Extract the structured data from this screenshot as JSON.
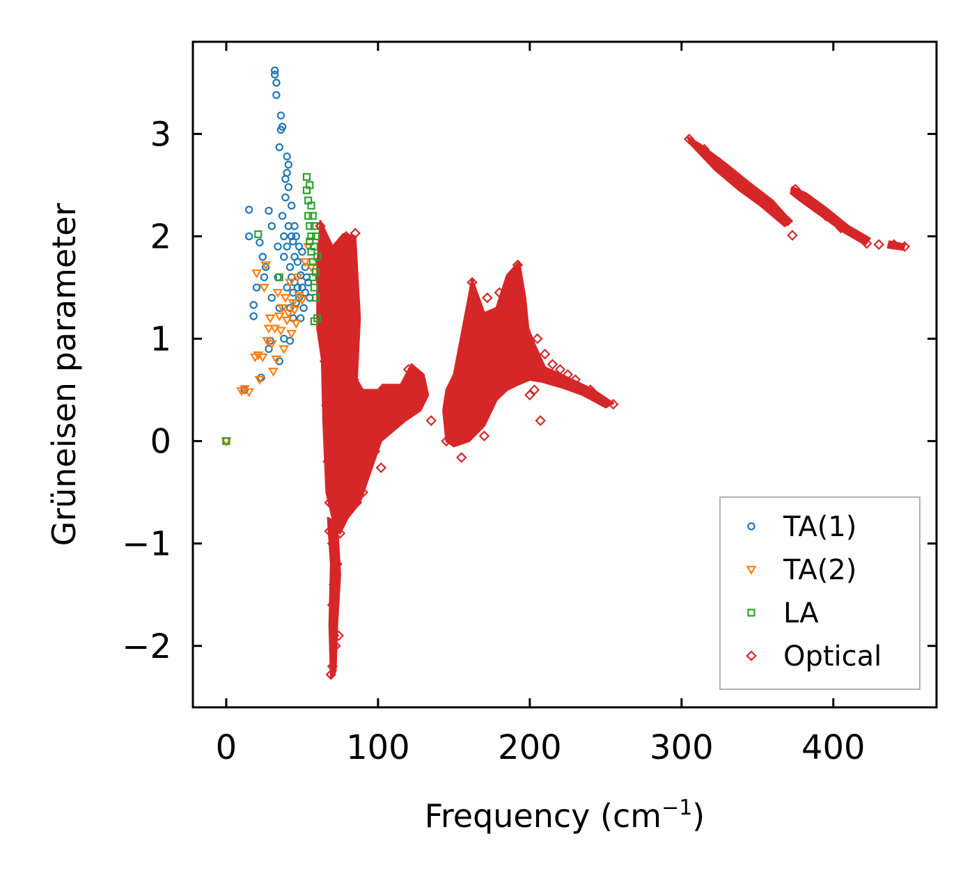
{
  "chart_data": {
    "type": "scatter",
    "xlabel": "Frequency (cm",
    "xlabel_sup": "−1",
    "xlabel_end": ")",
    "ylabel": "Grüneisen parameter",
    "xlim": [
      -22,
      468
    ],
    "ylim": [
      -2.6,
      3.9
    ],
    "x_ticks": [
      0,
      100,
      200,
      300,
      400
    ],
    "x_tick_labels": [
      "0",
      "100",
      "200",
      "300",
      "400"
    ],
    "y_ticks": [
      -2,
      -1,
      0,
      1,
      2,
      3
    ],
    "y_tick_labels": [
      "−2",
      "−1",
      "0",
      "1",
      "2",
      "3"
    ],
    "legend_position": "bottom-right",
    "series": [
      {
        "name": "TA(1)",
        "marker": "circle",
        "color": "#1f77b4",
        "points": [
          [
            0,
            0
          ],
          [
            12,
            0.5
          ],
          [
            15,
            2.0
          ],
          [
            15,
            2.26
          ],
          [
            18,
            1.22
          ],
          [
            18,
            1.33
          ],
          [
            20,
            1.5
          ],
          [
            22,
            1.94
          ],
          [
            23,
            0.62
          ],
          [
            24,
            1.8
          ],
          [
            25,
            1.6
          ],
          [
            26,
            1.7
          ],
          [
            28,
            2.25
          ],
          [
            28,
            0.9
          ],
          [
            29,
            0.98
          ],
          [
            30,
            2.1
          ],
          [
            30,
            1.4
          ],
          [
            32,
            3.62
          ],
          [
            32,
            3.58
          ],
          [
            33,
            3.5
          ],
          [
            33,
            3.38
          ],
          [
            34,
            1.9
          ],
          [
            34,
            1.6
          ],
          [
            35,
            1.3
          ],
          [
            35,
            0.78
          ],
          [
            35,
            2.87
          ],
          [
            36,
            3.04
          ],
          [
            36,
            3.18
          ],
          [
            37,
            3.07
          ],
          [
            37,
            2.2
          ],
          [
            38,
            2.0
          ],
          [
            38,
            1.8
          ],
          [
            38,
            1.0
          ],
          [
            39,
            2.56
          ],
          [
            39,
            2.38
          ],
          [
            40,
            2.78
          ],
          [
            40,
            2.62
          ],
          [
            40,
            1.9
          ],
          [
            40,
            1.5
          ],
          [
            41,
            2.7
          ],
          [
            41,
            2.48
          ],
          [
            41,
            2.1
          ],
          [
            42,
            0.98
          ],
          [
            42,
            1.7
          ],
          [
            42,
            1.3
          ],
          [
            43,
            2.3
          ],
          [
            43,
            2.0
          ],
          [
            43,
            1.6
          ],
          [
            44,
            1.95
          ],
          [
            44,
            1.45
          ],
          [
            44,
            1.2
          ],
          [
            45,
            2.1
          ],
          [
            45,
            1.8
          ],
          [
            45,
            1.55
          ],
          [
            46,
            2.0
          ],
          [
            46,
            1.35
          ],
          [
            47,
            1.75
          ],
          [
            47,
            1.5
          ],
          [
            48,
            1.9
          ],
          [
            48,
            1.4
          ],
          [
            49,
            1.62
          ],
          [
            49,
            1.2
          ],
          [
            50,
            1.85
          ],
          [
            50,
            1.5
          ],
          [
            51,
            1.3
          ],
          [
            52,
            1.7
          ],
          [
            52,
            1.45
          ],
          [
            53,
            1.6
          ],
          [
            54,
            1.55
          ],
          [
            55,
            1.4
          ]
        ]
      },
      {
        "name": "TA(2)",
        "marker": "triangle-down",
        "color": "#ff7f0e",
        "points": [
          [
            0,
            0
          ],
          [
            10,
            0.49
          ],
          [
            12,
            0.51
          ],
          [
            15,
            0.48
          ],
          [
            19,
            0.82
          ],
          [
            20,
            1.64
          ],
          [
            21,
            0.84
          ],
          [
            22,
            0.6
          ],
          [
            24,
            0.82
          ],
          [
            25,
            1.5
          ],
          [
            26,
            1.72
          ],
          [
            27,
            0.98
          ],
          [
            28,
            1.1
          ],
          [
            29,
            1.2
          ],
          [
            30,
            0.95
          ],
          [
            31,
            0.68
          ],
          [
            32,
            1.1
          ],
          [
            33,
            0.8
          ],
          [
            34,
            1.45
          ],
          [
            35,
            1.22
          ],
          [
            36,
            1.08
          ],
          [
            37,
            1.3
          ],
          [
            38,
            0.9
          ],
          [
            39,
            1.4
          ],
          [
            40,
            1.18
          ],
          [
            41,
            1.25
          ],
          [
            42,
            1.55
          ],
          [
            43,
            1.05
          ],
          [
            44,
            1.35
          ],
          [
            45,
            1.28
          ],
          [
            46,
            1.15
          ],
          [
            47,
            1.6
          ],
          [
            48,
            1.42
          ],
          [
            50,
            1.38
          ],
          [
            52,
            1.75
          ],
          [
            54,
            1.9
          ],
          [
            56,
            1.7
          ]
        ]
      },
      {
        "name": "LA",
        "marker": "square",
        "color": "#2ca02c",
        "points": [
          [
            0,
            0
          ],
          [
            21,
            2.02
          ],
          [
            35,
            1.6
          ],
          [
            53,
            2.58
          ],
          [
            53,
            2.45
          ],
          [
            54,
            2.35
          ],
          [
            54,
            2.2
          ],
          [
            55,
            2.5
          ],
          [
            55,
            2.1
          ],
          [
            55,
            1.95
          ],
          [
            56,
            2.3
          ],
          [
            56,
            2.0
          ],
          [
            56,
            1.85
          ],
          [
            57,
            2.2
          ],
          [
            57,
            1.75
          ],
          [
            57,
            1.6
          ],
          [
            58,
            2.1
          ],
          [
            58,
            1.9
          ],
          [
            58,
            1.5
          ],
          [
            59,
            2.0
          ],
          [
            59,
            1.4
          ],
          [
            60,
            1.8
          ],
          [
            60,
            1.2
          ],
          [
            58,
            1.17
          ],
          [
            59,
            1.65
          ]
        ]
      },
      {
        "name": "Optical",
        "marker": "diamond",
        "color": "#d62728",
        "points": [
          [
            62,
            2.1
          ],
          [
            64,
            1.5
          ],
          [
            65,
            0.78
          ],
          [
            66,
            0.35
          ],
          [
            67,
            -0.2
          ],
          [
            68,
            -0.6
          ],
          [
            68,
            -0.88
          ],
          [
            69,
            -2.28
          ],
          [
            70,
            -2.2
          ],
          [
            70,
            -1.6
          ],
          [
            70,
            -1.0
          ],
          [
            71,
            -1.9
          ],
          [
            71,
            -1.4
          ],
          [
            72,
            -2.0
          ],
          [
            72,
            -0.8
          ],
          [
            73,
            -1.2
          ],
          [
            74,
            -1.9
          ],
          [
            74,
            -0.4
          ],
          [
            75,
            -0.9
          ],
          [
            76,
            0.0
          ],
          [
            76,
            1.9
          ],
          [
            78,
            1.6
          ],
          [
            79,
            2.0
          ],
          [
            80,
            1.2
          ],
          [
            80,
            -0.7
          ],
          [
            82,
            0.9
          ],
          [
            84,
            0.6
          ],
          [
            85,
            2.03
          ],
          [
            86,
            -0.6
          ],
          [
            88,
            0.3
          ],
          [
            90,
            -0.5
          ],
          [
            92,
            0.0
          ],
          [
            95,
            0.4
          ],
          [
            98,
            -0.1
          ],
          [
            100,
            0.45
          ],
          [
            102,
            -0.26
          ],
          [
            105,
            0.1
          ],
          [
            108,
            0.5
          ],
          [
            110,
            0.2
          ],
          [
            115,
            0.45
          ],
          [
            120,
            0.7
          ],
          [
            125,
            0.65
          ],
          [
            130,
            0.45
          ],
          [
            135,
            0.2
          ],
          [
            145,
            0.0
          ],
          [
            150,
            0.4
          ],
          [
            155,
            -0.16
          ],
          [
            158,
            0.8
          ],
          [
            160,
            1.0
          ],
          [
            162,
            1.55
          ],
          [
            165,
            0.7
          ],
          [
            167,
            0.4
          ],
          [
            170,
            0.05
          ],
          [
            172,
            1.4
          ],
          [
            175,
            1.1
          ],
          [
            178,
            0.85
          ],
          [
            180,
            1.45
          ],
          [
            182,
            0.5
          ],
          [
            185,
            1.2
          ],
          [
            188,
            0.65
          ],
          [
            190,
            1.6
          ],
          [
            192,
            1.72
          ],
          [
            195,
            1.25
          ],
          [
            198,
            0.8
          ],
          [
            200,
            0.45
          ],
          [
            203,
            0.5
          ],
          [
            205,
            1.0
          ],
          [
            207,
            0.2
          ],
          [
            210,
            0.85
          ],
          [
            215,
            0.75
          ],
          [
            220,
            0.7
          ],
          [
            225,
            0.65
          ],
          [
            230,
            0.6
          ],
          [
            240,
            0.5
          ],
          [
            250,
            0.38
          ],
          [
            255,
            0.36
          ],
          [
            305,
            2.95
          ],
          [
            315,
            2.85
          ],
          [
            325,
            2.72
          ],
          [
            335,
            2.58
          ],
          [
            345,
            2.47
          ],
          [
            355,
            2.35
          ],
          [
            365,
            2.2
          ],
          [
            370,
            2.15
          ],
          [
            373,
            2.01
          ],
          [
            375,
            2.46
          ],
          [
            385,
            2.35
          ],
          [
            395,
            2.2
          ],
          [
            405,
            2.08
          ],
          [
            415,
            2.02
          ],
          [
            422,
            1.93
          ],
          [
            430,
            1.92
          ],
          [
            440,
            1.92
          ],
          [
            447,
            1.9
          ]
        ]
      }
    ]
  }
}
